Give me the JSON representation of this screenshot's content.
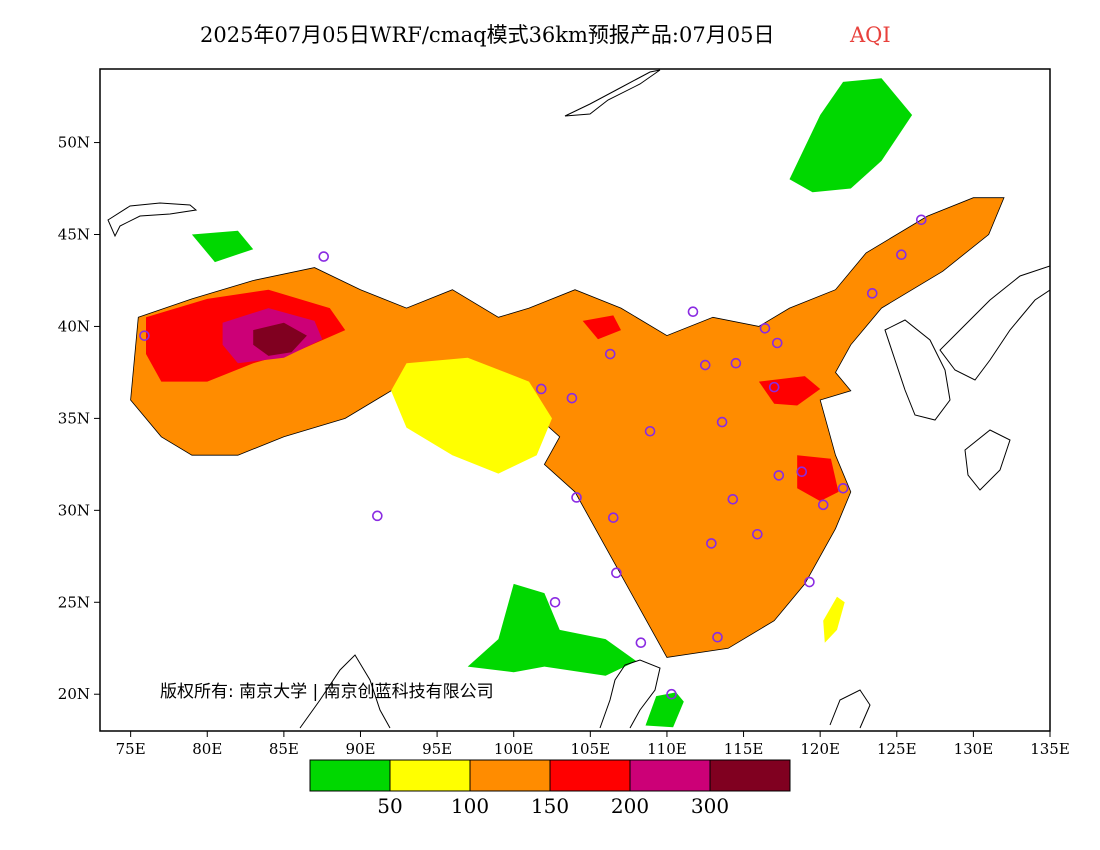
{
  "header": {
    "title": "2025年07月05日WRF/cmaq模式36km预报产品:07月05日",
    "variable": "AQI",
    "variable_color": "#e8413c"
  },
  "copyright": "版权所有: 南京大学 | 南京创蓝科技有限公司",
  "colors": {
    "outline": "#000000",
    "station_marker": "#8a2be2",
    "ocean": "#ffffff"
  },
  "chart_data": {
    "type": "heatmap",
    "title": "2025年07月05日WRF/cmaq模式36km预报产品:07月05日",
    "variable": "AQI",
    "xlim": [
      73,
      135
    ],
    "ylim": [
      18,
      54
    ],
    "x_ticks": [
      75,
      80,
      85,
      90,
      95,
      100,
      105,
      110,
      115,
      120,
      125,
      130,
      135
    ],
    "y_ticks": [
      20,
      25,
      30,
      35,
      40,
      45,
      50
    ],
    "x_tick_labels": [
      "75E",
      "80E",
      "85E",
      "90E",
      "95E",
      "100E",
      "105E",
      "110E",
      "115E",
      "120E",
      "125E",
      "130E",
      "135E"
    ],
    "y_tick_labels": [
      "20N",
      "25N",
      "30N",
      "35N",
      "40N",
      "45N",
      "50N"
    ],
    "legend": {
      "colors": [
        "#00d800",
        "#ffff00",
        "#ff8c00",
        "#ff0000",
        "#cc0077",
        "#800020"
      ],
      "boundaries": [
        50,
        100,
        150,
        200,
        300
      ],
      "boundary_labels": [
        "50",
        "100",
        "150",
        "200",
        "300"
      ]
    },
    "regions": [
      {
        "level": "100-150",
        "color": "#ff8c00",
        "polygon": [
          [
            75.5,
            40.5
          ],
          [
            79,
            41.5
          ],
          [
            83,
            42.5
          ],
          [
            87,
            43.2
          ],
          [
            90,
            42
          ],
          [
            93,
            41
          ],
          [
            96,
            42
          ],
          [
            99,
            40.5
          ],
          [
            101,
            41
          ],
          [
            104,
            42
          ],
          [
            107,
            41
          ],
          [
            110,
            39.5
          ],
          [
            113,
            40.5
          ],
          [
            116,
            40
          ],
          [
            118,
            41
          ],
          [
            121,
            42
          ],
          [
            123,
            44
          ],
          [
            127,
            46
          ],
          [
            130,
            47
          ],
          [
            132,
            47
          ],
          [
            131,
            45
          ],
          [
            128,
            43
          ],
          [
            124,
            41
          ],
          [
            122,
            39
          ],
          [
            121,
            37.5
          ],
          [
            122,
            36.5
          ],
          [
            120,
            36
          ],
          [
            121,
            33
          ],
          [
            122,
            31
          ],
          [
            121,
            29
          ],
          [
            119,
            26
          ],
          [
            117,
            24
          ],
          [
            114,
            22.5
          ],
          [
            110,
            22
          ],
          [
            108,
            25
          ],
          [
            106,
            28
          ],
          [
            104,
            31
          ],
          [
            102,
            32.5
          ],
          [
            103,
            34
          ],
          [
            101,
            35.5
          ],
          [
            99,
            35
          ],
          [
            97,
            37
          ],
          [
            94,
            37.5
          ],
          [
            92,
            36.5
          ],
          [
            89,
            35
          ],
          [
            85,
            34
          ],
          [
            82,
            33
          ],
          [
            79,
            33
          ],
          [
            77,
            34
          ],
          [
            75,
            36
          ]
        ]
      },
      {
        "level": "150-200",
        "color": "#ff0000",
        "polygon": [
          [
            76,
            40.5
          ],
          [
            80,
            41.5
          ],
          [
            84,
            42
          ],
          [
            88,
            41
          ],
          [
            89,
            39.8
          ],
          [
            86,
            38.7
          ],
          [
            83,
            38
          ],
          [
            80,
            37
          ],
          [
            77,
            37
          ],
          [
            76,
            38.5
          ]
        ]
      },
      {
        "level": "200-300",
        "color": "#cc0077",
        "polygon": [
          [
            81,
            40.2
          ],
          [
            84,
            41
          ],
          [
            87,
            40.3
          ],
          [
            87.5,
            39.3
          ],
          [
            85,
            38.3
          ],
          [
            82,
            38
          ],
          [
            81,
            39
          ]
        ]
      },
      {
        "level": ">300",
        "color": "#800020",
        "polygon": [
          [
            83,
            39.8
          ],
          [
            85,
            40.2
          ],
          [
            86.5,
            39.5
          ],
          [
            85.5,
            38.6
          ],
          [
            84,
            38.4
          ],
          [
            83,
            39
          ]
        ]
      },
      {
        "level": "150-200",
        "color": "#ff0000",
        "polygon": [
          [
            116,
            37
          ],
          [
            119,
            37.3
          ],
          [
            120,
            36.6
          ],
          [
            118.5,
            35.7
          ],
          [
            117,
            35.8
          ]
        ]
      },
      {
        "level": "150-200",
        "color": "#ff0000",
        "polygon": [
          [
            118.5,
            33
          ],
          [
            120.7,
            32.8
          ],
          [
            121.2,
            31
          ],
          [
            120,
            30.5
          ],
          [
            118.5,
            31.2
          ]
        ]
      },
      {
        "level": "150-200",
        "color": "#ff0000",
        "polygon": [
          [
            104.5,
            40.3
          ],
          [
            106.5,
            40.6
          ],
          [
            107,
            39.8
          ],
          [
            105.5,
            39.3
          ]
        ]
      },
      {
        "level": "50-100",
        "color": "#ffff00",
        "polygon": [
          [
            93,
            38
          ],
          [
            97,
            38.3
          ],
          [
            101,
            37
          ],
          [
            102.5,
            35
          ],
          [
            101.5,
            33
          ],
          [
            99,
            32
          ],
          [
            96,
            33
          ],
          [
            93,
            34.5
          ],
          [
            92,
            36.5
          ]
        ]
      },
      {
        "level": "0-50",
        "color": "#00d800",
        "polygon": [
          [
            118,
            48
          ],
          [
            120,
            51.5
          ],
          [
            121.5,
            53.3
          ],
          [
            124,
            53.5
          ],
          [
            126,
            51.5
          ],
          [
            124,
            49
          ],
          [
            122,
            47.5
          ],
          [
            119.5,
            47.3
          ]
        ]
      },
      {
        "level": "0-50",
        "color": "#00d800",
        "polygon": [
          [
            97,
            21.5
          ],
          [
            99,
            23
          ],
          [
            100,
            26
          ],
          [
            102,
            25.5
          ],
          [
            103,
            23.5
          ],
          [
            106,
            23
          ],
          [
            108,
            21.8
          ],
          [
            106,
            21
          ],
          [
            102,
            21.5
          ],
          [
            100,
            21.2
          ]
        ]
      },
      {
        "level": "0-50",
        "color": "#00d800",
        "polygon": [
          [
            108.6,
            18.3
          ],
          [
            110.4,
            18.2
          ],
          [
            111.1,
            19.6
          ],
          [
            110.6,
            20.1
          ],
          [
            109.3,
            19.9
          ]
        ]
      },
      {
        "level": "0-50",
        "color": "#00d800",
        "polygon": [
          [
            79,
            45
          ],
          [
            82,
            45.2
          ],
          [
            83,
            44.2
          ],
          [
            80.5,
            43.5
          ]
        ]
      },
      {
        "level": "50-100",
        "color": "#ffff00",
        "polygon": [
          [
            120.3,
            22.8
          ],
          [
            121.1,
            23.5
          ],
          [
            121.6,
            25
          ],
          [
            121.1,
            25.3
          ],
          [
            120.2,
            24
          ]
        ]
      }
    ],
    "stations": [
      {
        "lon": 87.6,
        "lat": 43.8
      },
      {
        "lon": 75.9,
        "lat": 39.5
      },
      {
        "lon": 91.1,
        "lat": 29.7
      },
      {
        "lon": 101.8,
        "lat": 36.6
      },
      {
        "lon": 103.8,
        "lat": 36.1
      },
      {
        "lon": 106.3,
        "lat": 38.5
      },
      {
        "lon": 111.7,
        "lat": 40.8
      },
      {
        "lon": 112.5,
        "lat": 37.9
      },
      {
        "lon": 114.5,
        "lat": 38.0
      },
      {
        "lon": 116.4,
        "lat": 39.9
      },
      {
        "lon": 117.2,
        "lat": 39.1
      },
      {
        "lon": 117.0,
        "lat": 36.7
      },
      {
        "lon": 113.6,
        "lat": 34.8
      },
      {
        "lon": 108.9,
        "lat": 34.3
      },
      {
        "lon": 104.1,
        "lat": 30.7
      },
      {
        "lon": 106.5,
        "lat": 29.6
      },
      {
        "lon": 114.3,
        "lat": 30.6
      },
      {
        "lon": 112.9,
        "lat": 28.2
      },
      {
        "lon": 115.9,
        "lat": 28.7
      },
      {
        "lon": 117.3,
        "lat": 31.9
      },
      {
        "lon": 118.8,
        "lat": 32.1
      },
      {
        "lon": 121.5,
        "lat": 31.2
      },
      {
        "lon": 120.2,
        "lat": 30.3
      },
      {
        "lon": 119.3,
        "lat": 26.1
      },
      {
        "lon": 113.3,
        "lat": 23.1
      },
      {
        "lon": 108.3,
        "lat": 22.8
      },
      {
        "lon": 106.7,
        "lat": 26.6
      },
      {
        "lon": 102.7,
        "lat": 25.0
      },
      {
        "lon": 110.3,
        "lat": 20.0
      },
      {
        "lon": 123.4,
        "lat": 41.8
      },
      {
        "lon": 125.3,
        "lat": 43.9
      },
      {
        "lon": 126.6,
        "lat": 45.8
      }
    ]
  }
}
